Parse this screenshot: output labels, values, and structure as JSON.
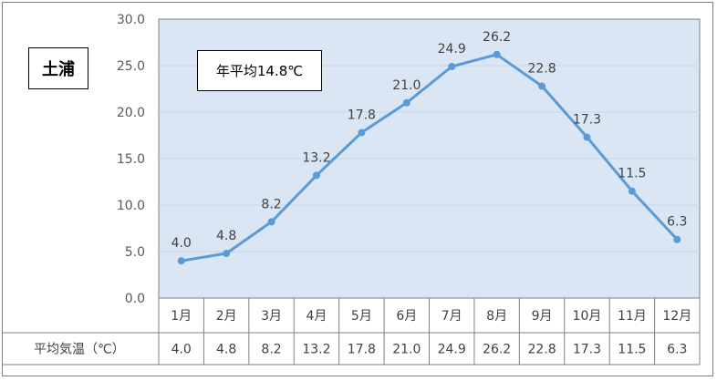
{
  "station_label": "土浦",
  "annual_average_label": "年平均14.8℃",
  "row_header": "平均気温（℃）",
  "colors": {
    "plot_bg": "#dae6f4",
    "line": "#5b9bd5",
    "grid": "#c8d6e8",
    "border": "#7f7f7f"
  },
  "chart_data": {
    "type": "line",
    "categories": [
      "1月",
      "2月",
      "3月",
      "4月",
      "5月",
      "6月",
      "7月",
      "8月",
      "9月",
      "10月",
      "11月",
      "12月"
    ],
    "series": [
      {
        "values": [
          4.0,
          4.8,
          8.2,
          13.2,
          17.8,
          21.0,
          24.9,
          26.2,
          22.8,
          17.3,
          11.5,
          6.3
        ]
      }
    ],
    "ylim": [
      0,
      30
    ],
    "yticks": [
      "0.0",
      "5.0",
      "10.0",
      "15.0",
      "20.0",
      "25.0",
      "30.0"
    ],
    "data_labels": [
      "4.0",
      "4.8",
      "8.2",
      "13.2",
      "17.8",
      "21.0",
      "24.9",
      "26.2",
      "22.8",
      "17.3",
      "11.5",
      "6.3"
    ],
    "grid": true,
    "data_table": true
  }
}
